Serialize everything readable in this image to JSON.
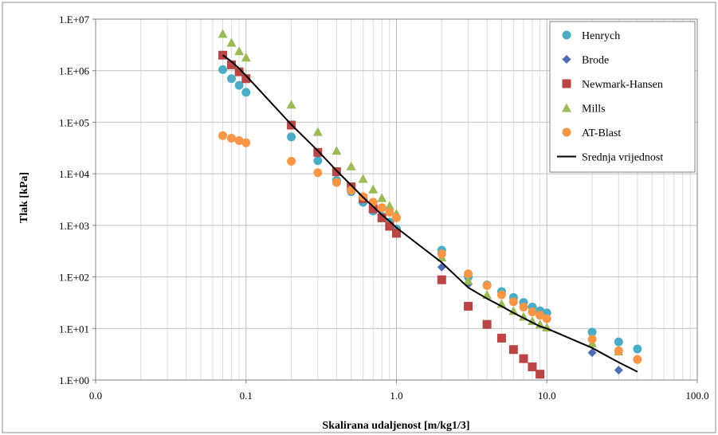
{
  "chart_data": {
    "type": "scatter",
    "xlabel": "Skalirana udaljenost [m/kg1/3]",
    "ylabel": "Tlak [kPa]",
    "x_scale": "log",
    "y_scale": "log",
    "xlim": [
      0.01,
      100
    ],
    "ylim": [
      1,
      10000000
    ],
    "x_tick_labels": [
      "0.0",
      "0.1",
      "1.0",
      "10.0",
      "100.0"
    ],
    "y_tick_labels": [
      "1.E+00",
      "1.E+01",
      "1.E+02",
      "1.E+03",
      "1.E+04",
      "1.E+05",
      "1.E+06",
      "1.E+07"
    ],
    "grid": true,
    "legend_position": "top-right",
    "series": [
      {
        "name": "Henrych",
        "marker": "circle",
        "color": "#4BACC6",
        "points": [
          [
            0.07,
            1050000
          ],
          [
            0.08,
            700000
          ],
          [
            0.09,
            520000
          ],
          [
            0.1,
            380000
          ],
          [
            0.2,
            52000
          ],
          [
            0.3,
            18000
          ],
          [
            0.4,
            7500
          ],
          [
            0.5,
            4500
          ],
          [
            0.6,
            2800
          ],
          [
            0.7,
            1900
          ],
          [
            0.8,
            1500
          ],
          [
            0.9,
            1150
          ],
          [
            1.0,
            850
          ],
          [
            2.0,
            330
          ],
          [
            3.0,
            100
          ],
          [
            4.0,
            70
          ],
          [
            5.0,
            52
          ],
          [
            6.0,
            40
          ],
          [
            7.0,
            32
          ],
          [
            8.0,
            26
          ],
          [
            9.0,
            22
          ],
          [
            10.0,
            20
          ],
          [
            20.0,
            8.5
          ],
          [
            30.0,
            5.5
          ],
          [
            40.0,
            4.0
          ]
        ]
      },
      {
        "name": "Brode",
        "marker": "diamond",
        "color": "#4F6CB5",
        "points": [
          [
            2.0,
            155
          ],
          [
            3.0,
            72
          ],
          [
            20.0,
            3.4
          ],
          [
            30.0,
            1.55
          ]
        ]
      },
      {
        "name": "Newmark-Hansen",
        "marker": "square",
        "color": "#B94545",
        "points": [
          [
            0.07,
            2000000
          ],
          [
            0.08,
            1300000
          ],
          [
            0.09,
            950000
          ],
          [
            0.1,
            700000
          ],
          [
            0.2,
            88000
          ],
          [
            0.3,
            26000
          ],
          [
            0.4,
            11000
          ],
          [
            0.5,
            5600
          ],
          [
            0.6,
            3300
          ],
          [
            0.7,
            2100
          ],
          [
            0.8,
            1400
          ],
          [
            0.9,
            960
          ],
          [
            1.0,
            700
          ],
          [
            2.0,
            88
          ],
          [
            3.0,
            27
          ],
          [
            4.0,
            12
          ],
          [
            5.0,
            6.5
          ],
          [
            6.0,
            3.9
          ],
          [
            7.0,
            2.6
          ],
          [
            8.0,
            1.8
          ],
          [
            9.0,
            1.3
          ]
        ]
      },
      {
        "name": "Mills",
        "marker": "triangle",
        "color": "#9BBB59",
        "points": [
          [
            0.07,
            5200000
          ],
          [
            0.08,
            3500000
          ],
          [
            0.09,
            2400000
          ],
          [
            0.1,
            1800000
          ],
          [
            0.2,
            220000
          ],
          [
            0.3,
            65000
          ],
          [
            0.4,
            28000
          ],
          [
            0.5,
            14000
          ],
          [
            0.6,
            8000
          ],
          [
            0.7,
            5000
          ],
          [
            0.8,
            3400
          ],
          [
            0.9,
            2400
          ],
          [
            1.0,
            1700
          ],
          [
            2.0,
            240
          ],
          [
            3.0,
            85
          ],
          [
            4.0,
            45
          ],
          [
            5.0,
            30
          ],
          [
            6.0,
            22
          ],
          [
            7.0,
            17
          ],
          [
            8.0,
            14
          ],
          [
            9.0,
            12
          ],
          [
            10.0,
            10.5
          ],
          [
            20.0,
            5.2
          ],
          [
            30.0,
            3.6
          ]
        ]
      },
      {
        "name": "AT-Blast",
        "marker": "circle",
        "color": "#F79646",
        "points": [
          [
            0.07,
            55000
          ],
          [
            0.08,
            49000
          ],
          [
            0.09,
            44000
          ],
          [
            0.1,
            40000
          ],
          [
            0.2,
            17500
          ],
          [
            0.3,
            10500
          ],
          [
            0.4,
            6800
          ],
          [
            0.5,
            4800
          ],
          [
            0.6,
            3600
          ],
          [
            0.7,
            2800
          ],
          [
            0.8,
            2200
          ],
          [
            0.9,
            1800
          ],
          [
            1.0,
            1400
          ],
          [
            2.0,
            280
          ],
          [
            3.0,
            115
          ],
          [
            4.0,
            68
          ],
          [
            5.0,
            45
          ],
          [
            6.0,
            33
          ],
          [
            7.0,
            26
          ],
          [
            8.0,
            21
          ],
          [
            9.0,
            18
          ],
          [
            10.0,
            15.5
          ],
          [
            20.0,
            6.2
          ],
          [
            30.0,
            3.7
          ],
          [
            40.0,
            2.5
          ]
        ]
      },
      {
        "name": "Srednja vrijednost",
        "marker": "line",
        "color": "#000000",
        "points": [
          [
            0.07,
            2000000
          ],
          [
            0.08,
            1500000
          ],
          [
            0.09,
            1100000
          ],
          [
            0.1,
            800000
          ],
          [
            0.2,
            90000
          ],
          [
            0.3,
            28000
          ],
          [
            0.4,
            11500
          ],
          [
            0.5,
            6000
          ],
          [
            0.6,
            3500
          ],
          [
            0.7,
            2300
          ],
          [
            0.8,
            1600
          ],
          [
            0.9,
            1200
          ],
          [
            1.0,
            900
          ],
          [
            2.0,
            190
          ],
          [
            3.0,
            62
          ],
          [
            4.0,
            38
          ],
          [
            5.0,
            27
          ],
          [
            6.0,
            20
          ],
          [
            7.0,
            16
          ],
          [
            8.0,
            13
          ],
          [
            9.0,
            11
          ],
          [
            10.0,
            10
          ],
          [
            20.0,
            4.2
          ],
          [
            30.0,
            2.2
          ],
          [
            40.0,
            1.45
          ]
        ]
      }
    ]
  }
}
